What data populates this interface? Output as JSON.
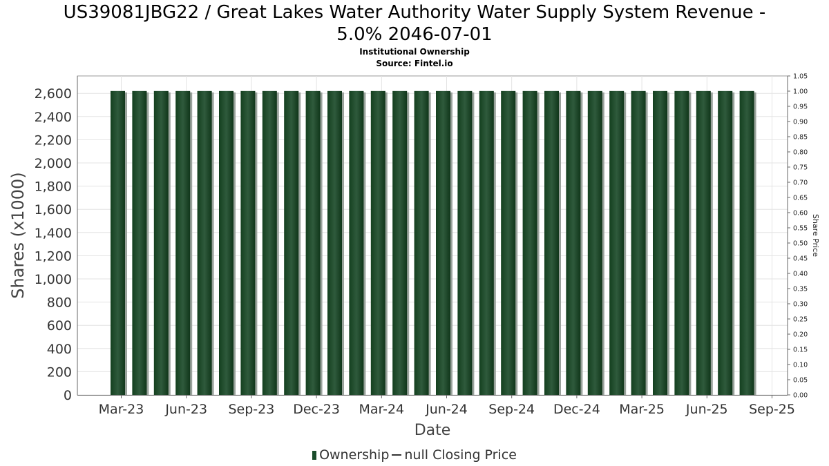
{
  "chart_data": {
    "type": "bar",
    "title": "US39081JBG22 / Great Lakes Water Authority Water Supply System Revenue -",
    "title_line2": "5.0% 2046-07-01",
    "subtitle": "Institutional Ownership",
    "source": "Source: Fintel.io",
    "xlabel": "Date",
    "ylabel": "Shares (x1000)",
    "y2label": "Share Price",
    "ylim": [
      0,
      2750
    ],
    "y2lim": [
      0,
      1.05
    ],
    "yticks": [
      "0",
      "200",
      "400",
      "600",
      "800",
      "1,000",
      "1,200",
      "1,400",
      "1,600",
      "1,800",
      "2,000",
      "2,200",
      "2,400",
      "2,600"
    ],
    "y2ticks": [
      "0.00",
      "0.05",
      "0.10",
      "0.15",
      "0.20",
      "0.25",
      "0.30",
      "0.35",
      "0.40",
      "0.45",
      "0.50",
      "0.55",
      "0.60",
      "0.65",
      "0.70",
      "0.75",
      "0.80",
      "0.85",
      "0.90",
      "0.95",
      "1.00",
      "1.05"
    ],
    "xticks": [
      "Mar-23",
      "Jun-23",
      "Sep-23",
      "Dec-23",
      "Mar-24",
      "Jun-24",
      "Sep-24",
      "Dec-24",
      "Mar-25",
      "Jun-25",
      "Sep-25"
    ],
    "grid": true,
    "legend_position": "bottom",
    "bar_color": "#1b4d2b",
    "series": [
      {
        "name": "Ownership",
        "values": [
          2620,
          2620,
          2620,
          2620,
          2620,
          2620,
          2620,
          2620,
          2620,
          2620,
          2620,
          2620,
          2620,
          2620,
          2620,
          2620,
          2620,
          2620,
          2620,
          2620,
          2620,
          2620,
          2620,
          2620,
          2620,
          2620,
          2620,
          2620,
          2620,
          2620
        ]
      },
      {
        "name": "null Closing Price",
        "values": []
      }
    ]
  }
}
